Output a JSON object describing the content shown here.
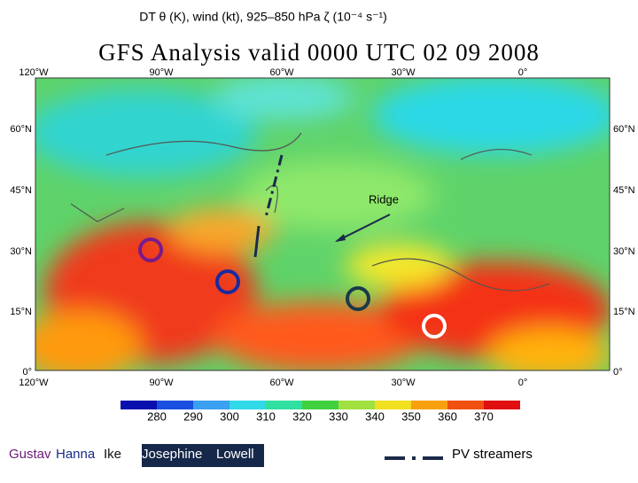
{
  "header": {
    "title": "DT θ (K), wind (kt), 925–850 hPa ζ (10⁻⁴ s⁻¹)"
  },
  "map": {
    "title": "GFS Analysis valid 0000 UTC 02 09 2008",
    "lon_labels": [
      "120°W",
      "90°W",
      "60°W",
      "30°W",
      "0°"
    ],
    "lat_labels": [
      "60°N",
      "45°N",
      "30°N",
      "15°N",
      "0°"
    ],
    "annotation": "Ridge"
  },
  "colorbar": {
    "ticks": [
      280,
      290,
      300,
      310,
      320,
      330,
      340,
      350,
      360,
      370
    ]
  },
  "legend": {
    "storms": [
      "Gustav",
      "Hanna",
      "Ike",
      "Josephine",
      "Lowell"
    ],
    "streamer_label": "PV streamers"
  }
}
